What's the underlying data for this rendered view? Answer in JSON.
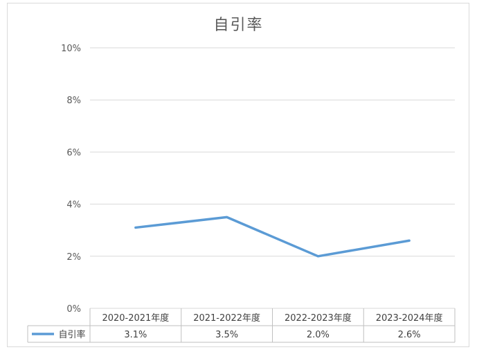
{
  "chart_data": {
    "type": "line",
    "title": "自引率",
    "categories": [
      "2020-2021年度",
      "2021-2022年度",
      "2022-2023年度",
      "2023-2024年度"
    ],
    "series": [
      {
        "name": "自引率",
        "values": [
          3.1,
          3.5,
          2.0,
          2.6
        ],
        "labels": [
          "3.1%",
          "3.5%",
          "2.0%",
          "2.6%"
        ],
        "color": "#5b9bd5"
      }
    ],
    "y_ticks": [
      "0%",
      "2%",
      "4%",
      "6%",
      "8%",
      "10%"
    ],
    "ylim": [
      0,
      10
    ],
    "grid": true,
    "data_table": true
  }
}
